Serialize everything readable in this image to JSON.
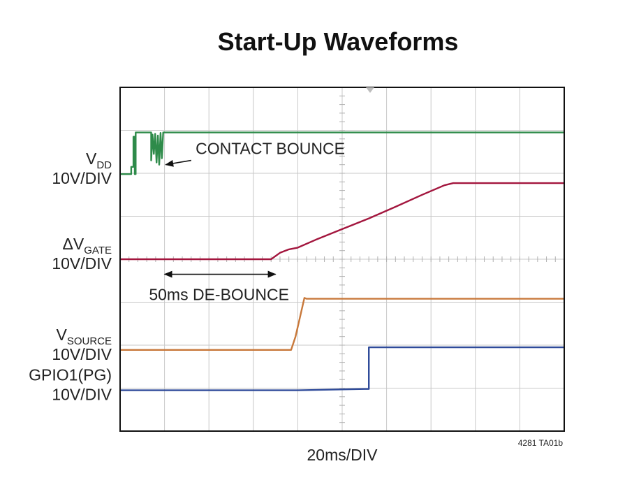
{
  "chart_data": {
    "type": "line",
    "title": "Start-Up Waveforms",
    "xlabel": "20ms/DIV",
    "figure_code": "4281 TA01b",
    "xlim": [
      0,
      200
    ],
    "ylim": [
      0,
      8
    ],
    "grid": true,
    "series": [
      {
        "name": "VDD",
        "name_main": "V",
        "name_sub": "DD",
        "scale": "10V/DIV",
        "color": "#2e8b4a",
        "points": [
          [
            0,
            5.98
          ],
          [
            5,
            5.98
          ],
          [
            5,
            6.15
          ],
          [
            6,
            6.15
          ],
          [
            6,
            6.85
          ],
          [
            6.6,
            6.85
          ],
          [
            6.6,
            5.98
          ],
          [
            7,
            5.98
          ],
          [
            7,
            6.95
          ],
          [
            14,
            6.95
          ],
          [
            14,
            6.3
          ],
          [
            14.6,
            6.9
          ],
          [
            15.2,
            6.45
          ],
          [
            15.8,
            6.92
          ],
          [
            16.4,
            6.25
          ],
          [
            17,
            6.88
          ],
          [
            17.6,
            6.2
          ],
          [
            18.2,
            6.94
          ],
          [
            18.8,
            6.35
          ],
          [
            19.4,
            6.95
          ],
          [
            200,
            6.95
          ]
        ]
      },
      {
        "name": "ΔVGATE",
        "name_main": "ΔV",
        "name_sub": "GATE",
        "scale": "10V/DIV",
        "color": "#a3163e",
        "points": [
          [
            0,
            4.0
          ],
          [
            68,
            4.0
          ],
          [
            72,
            4.15
          ],
          [
            76,
            4.23
          ],
          [
            80,
            4.27
          ],
          [
            88,
            4.45
          ],
          [
            100,
            4.7
          ],
          [
            112,
            4.95
          ],
          [
            124,
            5.22
          ],
          [
            136,
            5.5
          ],
          [
            146,
            5.72
          ],
          [
            150,
            5.77
          ],
          [
            200,
            5.77
          ]
        ]
      },
      {
        "name": "VSOURCE",
        "name_main": "V",
        "name_sub": "SOURCE",
        "scale": "10V/DIV",
        "color": "#c8783a",
        "points": [
          [
            0,
            1.89
          ],
          [
            77,
            1.89
          ],
          [
            79,
            2.2
          ],
          [
            81,
            2.65
          ],
          [
            83,
            3.1
          ],
          [
            84,
            3.08
          ],
          [
            200,
            3.08
          ]
        ]
      },
      {
        "name": "GPIO1(PG)",
        "name_main": "GPIO1(PG)",
        "name_sub": "",
        "scale": "10V/DIV",
        "color": "#2f4b9a",
        "points": [
          [
            0,
            0.95
          ],
          [
            80,
            0.95
          ],
          [
            110,
            0.98
          ],
          [
            112,
            0.98
          ],
          [
            112,
            1.95
          ],
          [
            200,
            1.95
          ]
        ]
      }
    ],
    "annotations": [
      {
        "id": "contact-bounce",
        "text": "CONTACT BOUNCE",
        "arrow_from": [
          32,
          6.3
        ],
        "arrow_to": [
          20.5,
          6.2
        ],
        "label_at": [
          34,
          6.45
        ]
      },
      {
        "id": "de-bounce",
        "text": "50ms DE-BOUNCE",
        "span_x": [
          20,
          70
        ],
        "span_y": 3.65,
        "label_at": [
          13,
          3.05
        ]
      }
    ]
  }
}
